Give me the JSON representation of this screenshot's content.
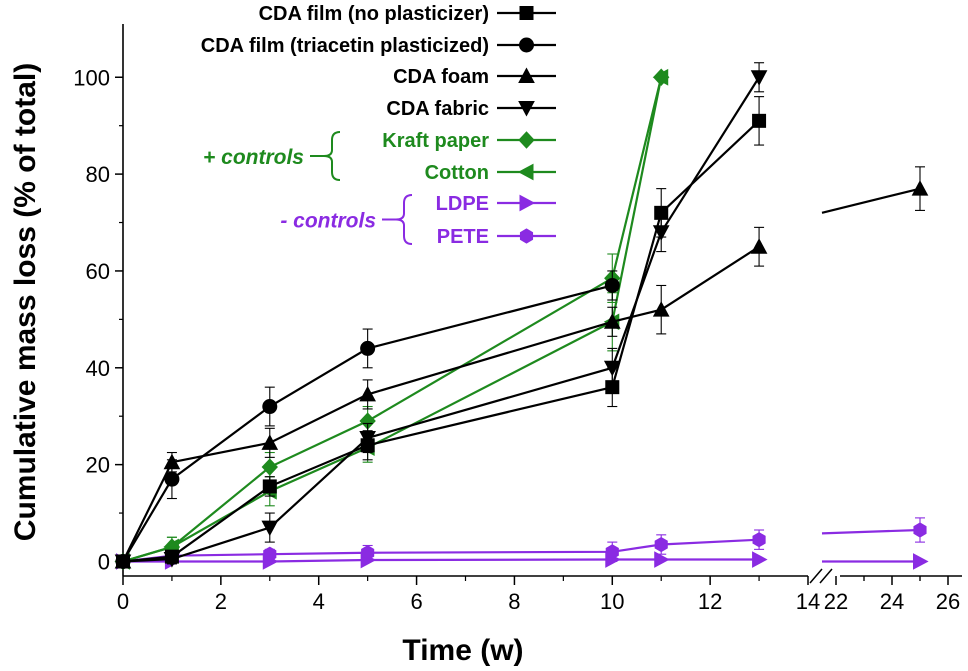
{
  "chart_data": {
    "type": "line",
    "xlabel": "Time (w)",
    "ylabel": "Cumulative mass loss (% of total)",
    "xlim_segments": [
      [
        0,
        14
      ],
      [
        21.5,
        26.5
      ]
    ],
    "ylim": [
      -3,
      111
    ],
    "x_ticks_left": [
      "0",
      "2",
      "4",
      "6",
      "8",
      "10",
      "12",
      "14"
    ],
    "x_ticks_right": [
      "22",
      "24",
      "26"
    ],
    "y_ticks": [
      "0",
      "20",
      "40",
      "60",
      "80",
      "100"
    ],
    "colors": {
      "black": "#000000",
      "green": "#1e8a1e",
      "purple": "#8a2be2"
    },
    "series": [
      {
        "name": "CDA film (no plasticizer)",
        "marker": "square",
        "color": "#000000",
        "x": [
          0,
          1,
          3,
          5,
          10,
          11,
          13
        ],
        "y": [
          0,
          1,
          15.5,
          24,
          36,
          72,
          91
        ],
        "err": [
          0,
          1,
          2,
          3,
          4,
          5,
          5
        ]
      },
      {
        "name": "CDA film (triacetin plasticized)",
        "marker": "circle",
        "color": "#000000",
        "x": [
          0,
          1,
          3,
          5,
          10
        ],
        "y": [
          0,
          17,
          32,
          44,
          57
        ],
        "err": [
          0,
          4,
          4,
          4,
          3
        ]
      },
      {
        "name": "CDA foam",
        "marker": "triangle-up",
        "color": "#000000",
        "x": [
          0,
          1,
          3,
          5,
          10,
          11,
          13,
          25
        ],
        "y": [
          0,
          20.5,
          24.5,
          34.5,
          49.5,
          52,
          65,
          77
        ],
        "err": [
          0,
          2,
          3,
          3,
          3,
          5,
          4,
          4.5
        ],
        "break_after_x": 13,
        "break_line_start": [
          21.5,
          72
        ]
      },
      {
        "name": "CDA fabric",
        "marker": "triangle-down",
        "color": "#000000",
        "x": [
          0,
          1,
          3,
          5,
          10,
          11,
          13
        ],
        "y": [
          0,
          0.5,
          7,
          25.5,
          40,
          68,
          100
        ],
        "err": [
          0,
          1,
          3,
          3,
          4,
          4,
          3
        ]
      },
      {
        "name": "Kraft paper",
        "marker": "diamond",
        "color": "#1e8a1e",
        "x": [
          0,
          1,
          3,
          5,
          10,
          11
        ],
        "y": [
          0,
          3,
          19.5,
          29,
          58.5,
          100
        ],
        "err": [
          0,
          2,
          3,
          3,
          5,
          0
        ]
      },
      {
        "name": "Cotton",
        "marker": "triangle-left",
        "color": "#1e8a1e",
        "x": [
          0,
          1,
          3,
          5,
          10,
          11
        ],
        "y": [
          0,
          3,
          14.5,
          23.5,
          49.5,
          100
        ],
        "err": [
          0,
          2,
          3,
          3,
          6,
          0
        ]
      },
      {
        "name": "LDPE",
        "marker": "triangle-right",
        "color": "#8a2be2",
        "x": [
          0,
          1,
          3,
          5,
          10,
          11,
          13,
          25
        ],
        "y": [
          0,
          0,
          0,
          0.3,
          0.4,
          0.4,
          0.4,
          0
        ],
        "err": [
          0,
          0,
          0,
          0,
          0,
          0,
          0,
          0
        ],
        "break_after_x": 13,
        "break_line_start": [
          21.5,
          0
        ]
      },
      {
        "name": "PETE",
        "marker": "hexagon",
        "color": "#8a2be2",
        "x": [
          0,
          1,
          3,
          5,
          10,
          11,
          13,
          25
        ],
        "y": [
          0,
          1.2,
          1.5,
          1.8,
          2,
          3.5,
          4.5,
          6.5
        ],
        "err": [
          0,
          1,
          1,
          1.5,
          2,
          2,
          2,
          2.5
        ],
        "break_after_x": 13,
        "break_line_start": [
          21.5,
          5.8
        ]
      }
    ],
    "legend": {
      "placement": "top-left",
      "groups": [
        {
          "label": "+ controls",
          "color": "#1e8a1e",
          "members": [
            "Kraft paper",
            "Cotton"
          ]
        },
        {
          "label": "- controls",
          "color": "#8a2be2",
          "members": [
            "LDPE",
            "PETE"
          ]
        }
      ]
    }
  }
}
